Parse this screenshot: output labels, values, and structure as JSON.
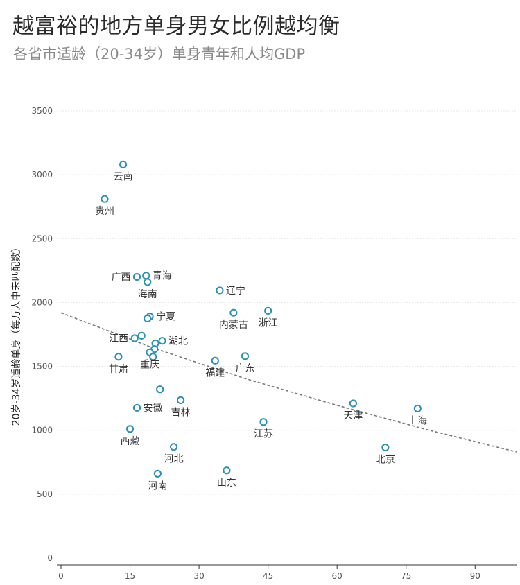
{
  "title": "越富裕的地方单身男女比例越均衡",
  "subtitle": "各省市适龄（20-34岁）单身青年和人均GDP",
  "chart_data": {
    "type": "scatter",
    "title": "越富裕的地方单身男女比例越均衡",
    "subtitle": "各省市适龄（20-34岁）单身青年和人均GDP",
    "xlabel": "",
    "ylabel": "20岁-34岁适龄单身（每万人中未匹配数）",
    "xlim": [
      0,
      99
    ],
    "ylim": [
      0,
      3500
    ],
    "xticks": [
      0,
      15,
      30,
      45,
      60,
      75,
      90
    ],
    "yticks": [
      0,
      500,
      1000,
      1500,
      2000,
      2500,
      3000,
      3500
    ],
    "grid": "horizontal",
    "marker_color": "#2a91b5",
    "trend_color": "#777777",
    "trend": [
      [
        0,
        1920
      ],
      [
        20,
        1645
      ],
      [
        40,
        1405
      ],
      [
        60,
        1195
      ],
      [
        80,
        1000
      ],
      [
        99,
        830
      ]
    ],
    "points": [
      {
        "name": "云南",
        "x": 13.5,
        "y": 3080,
        "label": "云南",
        "lpos": "below"
      },
      {
        "name": "贵州",
        "x": 9.5,
        "y": 2810,
        "label": "贵州",
        "lpos": "below"
      },
      {
        "name": "广西",
        "x": 16.5,
        "y": 2200,
        "label": "广西",
        "lpos": "left"
      },
      {
        "name": "青海",
        "x": 18.5,
        "y": 2210,
        "label": "青海",
        "lpos": "right"
      },
      {
        "name": "海南",
        "x": 18.8,
        "y": 2160,
        "label": "海南",
        "lpos": "below"
      },
      {
        "name": "辽宁",
        "x": 34.5,
        "y": 2095,
        "label": "辽宁",
        "lpos": "right"
      },
      {
        "name": "宁夏",
        "x": 19.3,
        "y": 1890,
        "label": "宁夏",
        "lpos": "right"
      },
      {
        "name": "宁夏-2",
        "x": 18.8,
        "y": 1875,
        "label": "",
        "lpos": "none"
      },
      {
        "name": "内蒙古",
        "x": 37.5,
        "y": 1920,
        "label": "内蒙古",
        "lpos": "below"
      },
      {
        "name": "浙江",
        "x": 45,
        "y": 1935,
        "label": "浙江",
        "lpos": "below"
      },
      {
        "name": "江西",
        "x": 16,
        "y": 1720,
        "label": "江西",
        "lpos": "left"
      },
      {
        "name": "江西-2",
        "x": 17.5,
        "y": 1740,
        "label": "",
        "lpos": "none"
      },
      {
        "name": "湖北",
        "x": 22,
        "y": 1700,
        "label": "湖北",
        "lpos": "right"
      },
      {
        "name": "湖北-2",
        "x": 20.5,
        "y": 1680,
        "label": "",
        "lpos": "none"
      },
      {
        "name": "重庆-3",
        "x": 20.3,
        "y": 1635,
        "label": "",
        "lpos": "none"
      },
      {
        "name": "重庆",
        "x": 19.3,
        "y": 1610,
        "label": "重庆",
        "lpos": "below"
      },
      {
        "name": "重庆-2",
        "x": 20,
        "y": 1575,
        "label": "",
        "lpos": "none"
      },
      {
        "name": "甘肃",
        "x": 12.5,
        "y": 1575,
        "label": "甘肃",
        "lpos": "below"
      },
      {
        "name": "福建",
        "x": 33.5,
        "y": 1545,
        "label": "福建",
        "lpos": "below"
      },
      {
        "name": "广东",
        "x": 40,
        "y": 1580,
        "label": "广东",
        "lpos": "below"
      },
      {
        "name": "中部-1",
        "x": 21.5,
        "y": 1320,
        "label": "",
        "lpos": "none"
      },
      {
        "name": "吉林",
        "x": 26,
        "y": 1235,
        "label": "吉林",
        "lpos": "below"
      },
      {
        "name": "安徽",
        "x": 16.5,
        "y": 1175,
        "label": "安徽",
        "lpos": "right"
      },
      {
        "name": "天津",
        "x": 63.5,
        "y": 1210,
        "label": "天津",
        "lpos": "below"
      },
      {
        "name": "上海",
        "x": 77.5,
        "y": 1170,
        "label": "上海",
        "lpos": "below"
      },
      {
        "name": "江苏",
        "x": 44,
        "y": 1065,
        "label": "江苏",
        "lpos": "below"
      },
      {
        "name": "西藏",
        "x": 15,
        "y": 1010,
        "label": "西藏",
        "lpos": "below"
      },
      {
        "name": "河北",
        "x": 24.5,
        "y": 870,
        "label": "河北",
        "lpos": "below"
      },
      {
        "name": "北京",
        "x": 70.5,
        "y": 865,
        "label": "北京",
        "lpos": "below"
      },
      {
        "name": "山东",
        "x": 36,
        "y": 685,
        "label": "山东",
        "lpos": "below"
      },
      {
        "name": "河南",
        "x": 21,
        "y": 660,
        "label": "河南",
        "lpos": "below"
      }
    ]
  }
}
